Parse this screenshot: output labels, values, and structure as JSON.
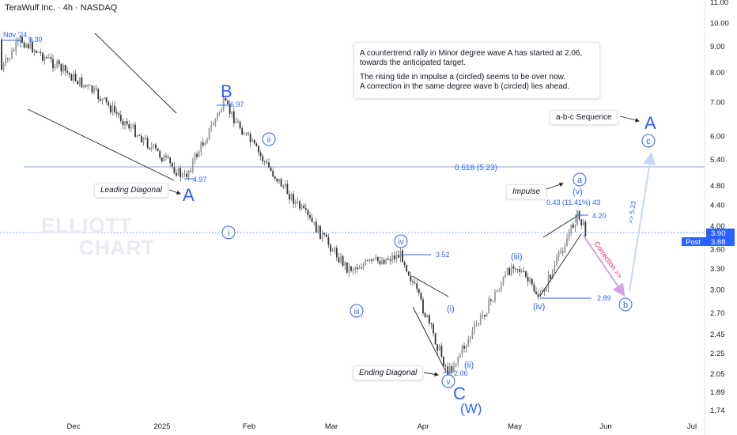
{
  "header": {
    "title": "TeraWulf Inc. · 4h · NASDAQ"
  },
  "annotations": {
    "note_line1": "A countertrend rally in Minor degree wave A has started at 2.06,\n towards the anticipated target.",
    "note_line2": "The rising tide in impulse a (circled) seems to be over now.\nA correction in the same degree wave b (circled) lies ahead.",
    "abc_label": "a-b-c Sequence",
    "leading_diagonal": "Leading Diagonal",
    "impulse": "Impulse",
    "ending_diagonal": "Ending Diagonal",
    "correction": "Correction >>",
    "target_arrow": ">> 5.23",
    "fib_label": "0.618 (5.23)",
    "gain_label": "0.43 (11.41%) 43"
  },
  "watermark": {
    "line1": "ELLIOTT",
    "line2": "CHART"
  },
  "price_labels": {
    "nov24": "Nov '24",
    "p930": "9.30",
    "p697": "6.97",
    "p497": "4.97",
    "p352": "3.52",
    "p420": "4.20",
    "p289": "2.89",
    "p206": "2.06"
  },
  "wave_labels": {
    "B": "B",
    "A_left": "A",
    "A_right": "A",
    "C": "C",
    "W": "(W)",
    "ii": "ii",
    "i": "i",
    "iii": "iii",
    "iv": "iv",
    "v": "v",
    "i_p": "(i)",
    "ii_p": "(ii)",
    "iii_p": "(iii)",
    "iv_p": "(iv)",
    "v_p": "(v)",
    "a_c": "a",
    "b_c": "b",
    "c_c": "c"
  },
  "price_tags": {
    "last": "3.90",
    "post_label": "Post",
    "post_value": "3.88"
  },
  "colors": {
    "wave": "#2962ff",
    "correction": "#e91e63",
    "axis_text": "#131722"
  },
  "chart_data": {
    "type": "candlestick",
    "x_ticks": [
      "Dec",
      "2025",
      "Feb",
      "Mar",
      "Apr",
      "May",
      "Jun",
      "Jul"
    ],
    "y_ticks": [
      11.0,
      10.0,
      9.0,
      8.0,
      7.0,
      6.0,
      5.4,
      4.8,
      4.4,
      4.0,
      3.6,
      3.3,
      3.0,
      2.7,
      2.45,
      2.25,
      2.05,
      1.89,
      1.74
    ],
    "y_scale": "log",
    "key_levels": [
      {
        "label": "Nov '24 high",
        "value": 9.3
      },
      {
        "label": "B",
        "value": 6.97
      },
      {
        "label": "A",
        "value": 4.97
      },
      {
        "label": "0.618 (5.23)",
        "value": 5.23
      },
      {
        "label": "iv",
        "value": 3.52
      },
      {
        "label": "C",
        "value": 2.06
      },
      {
        "label": "(v)",
        "value": 4.2
      },
      {
        "label": "(iv)",
        "value": 2.89
      }
    ],
    "last_price": 3.9,
    "post_price": 3.88,
    "trend_points": [
      {
        "t": "Nov '24",
        "v": 9.3
      },
      {
        "t": "Dec",
        "v": 7.3
      },
      {
        "t": "Jan",
        "v": 4.97
      },
      {
        "t": "late Jan",
        "v": 6.97
      },
      {
        "t": "Feb",
        "v": 5.2
      },
      {
        "t": "Mar",
        "v": 3.3
      },
      {
        "t": "late Mar",
        "v": 3.52
      },
      {
        "t": "Apr",
        "v": 2.06
      },
      {
        "t": "May",
        "v": 3.4
      },
      {
        "t": "mid May",
        "v": 2.89
      },
      {
        "t": "late May",
        "v": 4.2
      },
      {
        "t": "now",
        "v": 3.88
      }
    ]
  }
}
